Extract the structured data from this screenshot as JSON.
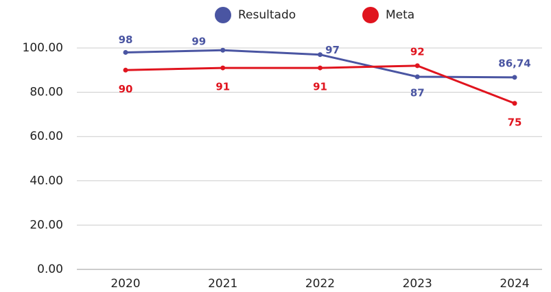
{
  "chart_data": {
    "type": "line",
    "categories": [
      "2020",
      "2021",
      "2022",
      "2023",
      "2024"
    ],
    "series": [
      {
        "name": "Resultado",
        "color": "#4a55a2",
        "values": [
          98,
          99,
          97,
          87,
          86.74
        ],
        "value_labels": [
          "98",
          "99",
          "97",
          "87",
          "86,74"
        ]
      },
      {
        "name": "Meta",
        "color": "#e0141e",
        "values": [
          90,
          91,
          91,
          92,
          75
        ]
      }
    ],
    "ylim": [
      0,
      100
    ],
    "yticks": [
      {
        "value": 0,
        "label": "0.00"
      },
      {
        "value": 20,
        "label": "20.00"
      },
      {
        "value": 40,
        "label": "40.00"
      },
      {
        "value": 60,
        "label": "60.00"
      },
      {
        "value": 80,
        "label": "80.00"
      },
      {
        "value": 100,
        "label": "100.00"
      }
    ],
    "grid": true
  }
}
